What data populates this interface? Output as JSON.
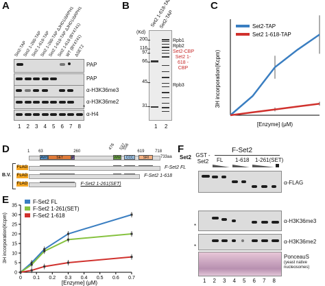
{
  "panels": {
    "A": {
      "letter": "A",
      "lanes": [
        "Set2-TAP",
        "Set2 1-260-TAP",
        "Set2 1-618-TAP",
        "Set2 1-260-TAP ΔJHD1/ΔRPH1",
        "Set2 1-618-TAP ΔJHD1/ΔRPH1",
        "Set2 1-618 (BY4741)",
        "WT (BY4741)",
        "ΔSET2"
      ],
      "blot_labels": [
        "PAP",
        "PAP",
        "α-H3K36me3",
        "α-H3K36me2",
        "α-H4"
      ],
      "star": "*",
      "lane_numbers": [
        "1",
        "2",
        "3",
        "4",
        "5",
        "6",
        "7",
        "8"
      ]
    },
    "B": {
      "letter": "B",
      "lanes": [
        "Set2 1-618-TAP",
        "Set2-TAP"
      ],
      "kd_label": "(Kd)",
      "markers": [
        "200",
        "116",
        "97",
        "66",
        "45",
        "31"
      ],
      "annotations": [
        "Rpb1",
        "Rpb2",
        "Set2-CBP",
        "Set2 1-618 -CBP",
        "Rpb3"
      ],
      "lane_numbers": [
        "1",
        "2"
      ]
    },
    "C": {
      "letter": "C",
      "ylabel": "3H incorporation(Kcpm)",
      "xlabel": "[Enzyme] (μM)"
    },
    "D": {
      "letter": "D",
      "positions": [
        "1",
        "63",
        "260",
        "476",
        "537",
        "556",
        "619",
        "718"
      ],
      "length": "733aa",
      "protein": "Set2",
      "domains": [
        "AWS",
        "SET",
        "PS",
        "WW",
        "SRI",
        "CCC"
      ],
      "bv": "B.V.",
      "flag": "FLAG",
      "constructs": [
        "F-Set2 FL",
        "F-Set2 1-618",
        "F-Set2 1-261(SET)"
      ]
    },
    "E": {
      "letter": "E",
      "ylabel": "3H incorporation(Kcpm)",
      "xlabel": "[Enzyme] (μM)"
    },
    "F": {
      "letter": "F",
      "gst": "GST -Set2",
      "group": "F-Set2",
      "cols": [
        "FL",
        "1-618",
        "1-261(SET)"
      ],
      "blot_labels": [
        "α-FLAG",
        "α-H3K36me3",
        "α-H3K36me2"
      ],
      "ponceau": "PonceauS",
      "ponceau_sub": "(yeast native nucleosomes)",
      "star": "*",
      "lane_numbers": [
        "1",
        "2",
        "3",
        "4",
        "5",
        "6",
        "7",
        "8"
      ]
    }
  },
  "chart_data": [
    {
      "type": "line",
      "panel": "C",
      "x": [
        0,
        0.4,
        0.8,
        1.2,
        1.6
      ],
      "series": [
        {
          "name": "Set2-TAP",
          "color": "#3a7ec1",
          "values": [
            0,
            1.0,
            2.5,
            3.4,
            4.2
          ],
          "errors": [
            0,
            0,
            0.6,
            0,
            1.0
          ]
        },
        {
          "name": "Set2 1-618-TAP",
          "color": "#d0312d",
          "values": [
            0,
            0.15,
            0.3,
            0.45,
            0.6
          ],
          "errors": [
            0,
            0,
            0.1,
            0,
            0.1
          ]
        }
      ],
      "xlabel": "[Enzyme] (μM)",
      "ylabel": "3H incorporation(Kcpm)",
      "xlim": [
        0,
        1.6
      ],
      "ylim": [
        0,
        5
      ],
      "legend": "top-left"
    },
    {
      "type": "line",
      "panel": "E",
      "x": [
        0,
        0.1,
        0.2,
        0.3,
        0.4,
        0.5,
        0.6,
        0.7
      ],
      "xticks": [
        "0",
        "0.1",
        "0.2",
        "0.3",
        "0.4",
        "0.5",
        "0.6",
        "0.7"
      ],
      "yticks": [
        "0",
        "5",
        "10",
        "15",
        "20",
        "25",
        "30",
        "35"
      ],
      "series": [
        {
          "name": "F-Set2 FL",
          "color": "#3a7ec1",
          "x": [
            0,
            0.07,
            0.15,
            0.3,
            0.7
          ],
          "values": [
            0,
            5,
            12,
            20,
            30
          ]
        },
        {
          "name": "F-Set2 1-261(SET)",
          "color": "#86c23f",
          "x": [
            0,
            0.07,
            0.15,
            0.3,
            0.7
          ],
          "values": [
            0,
            4,
            11,
            17,
            20
          ]
        },
        {
          "name": "F-Set2 1-618",
          "color": "#d0312d",
          "x": [
            0,
            0.07,
            0.15,
            0.3,
            0.7
          ],
          "values": [
            0,
            1,
            3,
            5,
            8
          ]
        }
      ],
      "xlabel": "[Enzyme] (μM)",
      "ylabel": "3H incorporation(Kcpm)",
      "xlim": [
        0,
        0.7
      ],
      "ylim": [
        0,
        35
      ],
      "legend": "top-left"
    }
  ]
}
